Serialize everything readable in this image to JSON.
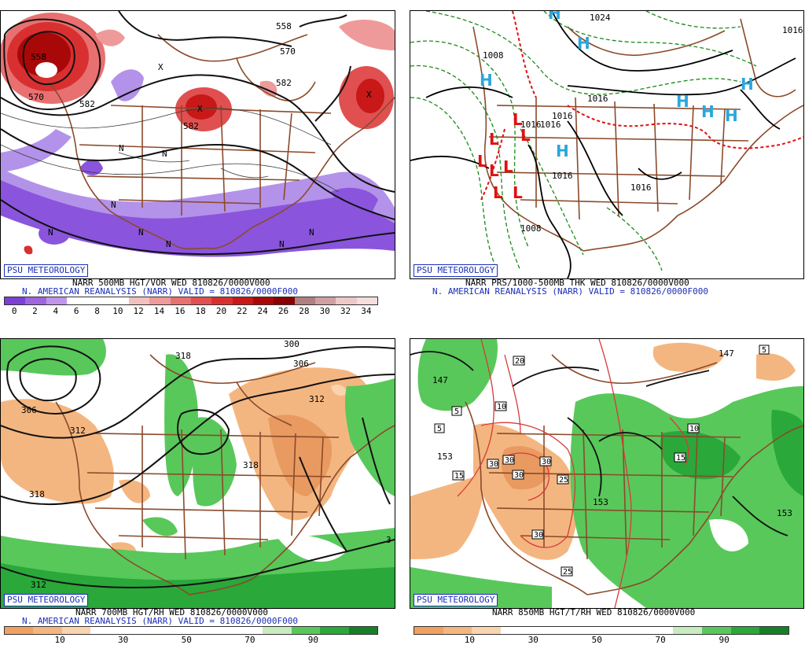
{
  "panels": {
    "p500": {
      "badge": "PSU METEOROLOGY",
      "caption_line1": "NARR 500MB HGT/VOR WED 810826/0000V000",
      "caption_line2": "N. AMERICAN REANALYSIS (NARR) VALID = 810826/0000F000",
      "colorbar_ticks": [
        "0",
        "2",
        "4",
        "6",
        "8",
        "10",
        "12",
        "14",
        "16",
        "18",
        "20",
        "22",
        "24",
        "26",
        "28",
        "30",
        "32",
        "34"
      ],
      "colorbar_colors": [
        "#7d3fd6",
        "#9f66e0",
        "#bf95ea",
        "#ffffff",
        "#ffffff",
        "#ffffff",
        "#f3c0c0",
        "#ef9a9a",
        "#e87070",
        "#e05050",
        "#d83030",
        "#c81818",
        "#a80808",
        "#880000",
        "#b08080",
        "#d0a0a0",
        "#eec8c8",
        "#f6dede"
      ],
      "contour_labels": [
        "558",
        "570",
        "582",
        "582",
        "582",
        "558",
        "570"
      ],
      "symbols": [
        "N",
        "N",
        "N",
        "N",
        "N",
        "N",
        "N",
        "N",
        "X",
        "X",
        "X"
      ]
    },
    "pmslp": {
      "badge": "PSU METEOROLOGY",
      "caption_line1": "NARR PRS/1000-500MB THK WED 810826/0000V000",
      "caption_line2": "N. AMERICAN REANALYSIS (NARR) VALID = 810826/0000F000",
      "contour_labels": [
        "1024",
        "1016",
        "1016",
        "1016",
        "1016",
        "1016",
        "1016",
        "1008",
        "1008",
        "1016"
      ],
      "highs": [
        "H",
        "H",
        "H",
        "H",
        "H",
        "H",
        "H",
        "H"
      ],
      "lows": [
        "L",
        "L",
        "L",
        "L",
        "L",
        "L",
        "L",
        "L"
      ]
    },
    "p700": {
      "badge": "PSU METEOROLOGY",
      "caption_line1": "NARR 700MB HGT/RH WED 810826/0000V000",
      "caption_line2": "N. AMERICAN REANALYSIS (NARR) VALID = 810826/0000F000",
      "colorbar_ticks": [
        "10",
        "30",
        "50",
        "70",
        "90"
      ],
      "colorbar_colors": [
        "#f0a060",
        "#f4b680",
        "#fad3b0",
        "#ffffff",
        "#ffffff",
        "#ffffff",
        "#ffffff",
        "#ffffff",
        "#ffffff",
        "#c8ecc0",
        "#58c85a",
        "#2aa83a",
        "#158028"
      ],
      "contour_labels": [
        "300",
        "306",
        "306",
        "312",
        "312",
        "318",
        "318",
        "318",
        "312",
        "3"
      ]
    },
    "p850": {
      "badge": "PSU METEOROLOGY",
      "caption_line1": "NARR 850MB HGT/T/RH WED 810826/0000V000",
      "colorbar_ticks": [
        "10",
        "30",
        "50",
        "70",
        "90"
      ],
      "colorbar_colors": [
        "#f0a060",
        "#f4b680",
        "#fad3b0",
        "#ffffff",
        "#ffffff",
        "#ffffff",
        "#ffffff",
        "#ffffff",
        "#ffffff",
        "#c8ecc0",
        "#58c85a",
        "#2aa83a",
        "#158028"
      ],
      "contour_labels": [
        "147",
        "147",
        "153",
        "153",
        "153"
      ],
      "boxed_labels": [
        "20",
        "10",
        "5",
        "5",
        "15",
        "30",
        "30",
        "30",
        "30",
        "25",
        "30",
        "25",
        "10",
        "15",
        "5"
      ]
    }
  }
}
